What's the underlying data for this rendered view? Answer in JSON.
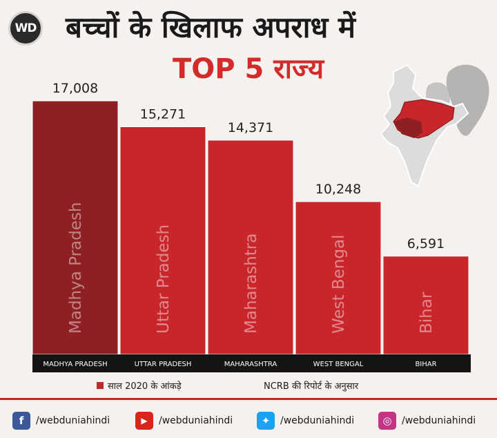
{
  "header": {
    "logo": "WD",
    "title": "बच्चों के खिलाफ अपराध में",
    "subtitle": "TOP 5 राज्य"
  },
  "chart_data": {
    "type": "bar",
    "title": "बच्चों के खिलाफ अपराध में TOP 5 राज्य",
    "categories": [
      "MADHYA PRADESH",
      "UTTAR PRADESH",
      "MAHARASHTRA",
      "WEST BENGAL",
      "BIHAR"
    ],
    "bar_labels": [
      "Madhya Pradesh",
      "Uttar Pradesh",
      "Maharashtra",
      "West Bengal",
      "Bihar"
    ],
    "values": [
      17008,
      15271,
      14371,
      10248,
      6591
    ],
    "value_labels": [
      "17,008",
      "15,271",
      "14,371",
      "10,248",
      "6,591"
    ],
    "ylim": [
      0,
      17008
    ],
    "grid": false,
    "colors": {
      "highlight": "#8e1f22",
      "bar": "#c9262c",
      "axis_strip": "#141414"
    }
  },
  "legend": {
    "label": "साल 2020 के आंकड़े"
  },
  "source": {
    "label": "NCRB की रिपोर्ट के अनुसार"
  },
  "social": [
    {
      "icon": "facebook-icon",
      "handle": "/webduniahindi",
      "color": "#3b5998",
      "glyph": "f"
    },
    {
      "icon": "youtube-icon",
      "handle": "/webduniahindi",
      "color": "#d9261c",
      "glyph": "▶"
    },
    {
      "icon": "twitter-icon",
      "handle": "/webduniahindi",
      "color": "#1da1f2",
      "glyph": "✦"
    },
    {
      "icon": "instagram-icon",
      "handle": "/webduniahindi",
      "color": "#c13584",
      "glyph": "◎"
    }
  ]
}
